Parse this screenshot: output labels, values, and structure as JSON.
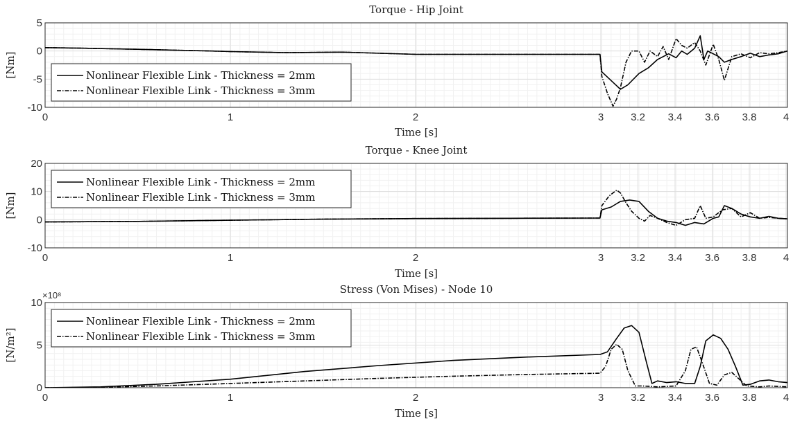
{
  "chart_data": [
    {
      "type": "line",
      "title": "Torque - Hip Joint",
      "xlabel": "Time [s]",
      "ylabel": "[Nm]",
      "xlim": [
        0,
        4
      ],
      "ylim": [
        -10,
        5
      ],
      "x_major_ticks": [
        "0",
        "1",
        "2",
        "3",
        "3.2",
        "3.4",
        "3.6",
        "3.8",
        "4"
      ],
      "y_ticks": [
        "5",
        "0",
        "-5",
        "-10"
      ],
      "grid": true,
      "legend_position": "bottom-left",
      "series": [
        {
          "name": "Nonlinear Flexible Link - Thickness = 2mm",
          "style": "solid",
          "x": [
            0,
            0.2,
            0.5,
            0.9,
            1.0,
            1.3,
            1.6,
            2.0,
            2.5,
            2.99,
            3.0,
            3.1,
            3.14,
            3.2,
            3.25,
            3.3,
            3.33,
            3.36,
            3.4,
            3.43,
            3.46,
            3.5,
            3.53,
            3.55,
            3.57,
            3.6,
            3.63,
            3.66,
            3.7,
            3.75,
            3.8,
            3.85,
            3.9,
            3.95,
            4.0
          ],
          "y": [
            0.6,
            0.5,
            0.3,
            0.0,
            -0.1,
            -0.3,
            -0.2,
            -0.6,
            -0.6,
            -0.6,
            -3.7,
            -6.8,
            -6.0,
            -4.0,
            -3.0,
            -1.5,
            -1.0,
            -0.5,
            -1.2,
            0.0,
            -0.6,
            0.5,
            2.7,
            -1.5,
            0.0,
            -0.5,
            -1.0,
            -2.0,
            -1.5,
            -1.0,
            -0.4,
            -1.0,
            -0.7,
            -0.5,
            0.0
          ]
        },
        {
          "name": "Nonlinear Flexible Link - Thickness = 3mm",
          "style": "dash-dot",
          "x": [
            0,
            0.2,
            0.5,
            0.9,
            1.0,
            1.3,
            1.6,
            2.0,
            2.5,
            2.99,
            3.0,
            3.03,
            3.06,
            3.08,
            3.1,
            3.13,
            3.16,
            3.2,
            3.23,
            3.26,
            3.3,
            3.33,
            3.36,
            3.4,
            3.43,
            3.46,
            3.5,
            3.53,
            3.56,
            3.6,
            3.63,
            3.66,
            3.7,
            3.75,
            3.8,
            3.85,
            3.9,
            3.95,
            4.0
          ],
          "y": [
            0.6,
            0.5,
            0.3,
            0.0,
            -0.1,
            -0.3,
            -0.2,
            -0.6,
            -0.6,
            -0.6,
            -4.5,
            -7.5,
            -9.8,
            -8.5,
            -6.5,
            -2.0,
            0.0,
            0.0,
            -2.0,
            0.0,
            -1.0,
            0.8,
            -1.5,
            2.2,
            1.0,
            0.5,
            1.5,
            0.0,
            -2.5,
            1.2,
            -1.5,
            -5.2,
            -1.0,
            -0.5,
            -1.2,
            -0.3,
            -0.5,
            -0.3,
            0.0
          ]
        }
      ]
    },
    {
      "type": "line",
      "title": "Torque - Knee Joint",
      "xlabel": "Time [s]",
      "ylabel": "[Nm]",
      "xlim": [
        0,
        4
      ],
      "ylim": [
        -10,
        20
      ],
      "x_major_ticks": [
        "0",
        "1",
        "2",
        "3",
        "3.2",
        "3.4",
        "3.6",
        "3.8",
        "4"
      ],
      "y_ticks": [
        "20",
        "10",
        "0",
        "-10"
      ],
      "grid": true,
      "legend_position": "top-left",
      "series": [
        {
          "name": "Nonlinear Flexible Link - Thickness = 2mm",
          "style": "solid",
          "x": [
            0,
            0.5,
            1.0,
            1.5,
            2.0,
            2.5,
            2.99,
            3.0,
            3.05,
            3.1,
            3.15,
            3.2,
            3.25,
            3.3,
            3.35,
            3.4,
            3.45,
            3.5,
            3.55,
            3.6,
            3.63,
            3.66,
            3.7,
            3.75,
            3.8,
            3.85,
            3.9,
            3.95,
            4.0
          ],
          "y": [
            -0.8,
            -0.6,
            -0.2,
            0.2,
            0.4,
            0.5,
            0.6,
            3.5,
            4.5,
            6.5,
            7.0,
            6.5,
            3.0,
            0.5,
            -0.5,
            -1.0,
            -2.0,
            -1.0,
            -1.5,
            0.5,
            1.0,
            5.0,
            4.0,
            2.0,
            1.0,
            0.5,
            1.2,
            0.5,
            0.3
          ]
        },
        {
          "name": "Nonlinear Flexible Link - Thickness = 3mm",
          "style": "dash-dot",
          "x": [
            0,
            0.5,
            1.0,
            1.5,
            2.0,
            2.5,
            2.99,
            3.0,
            3.04,
            3.08,
            3.1,
            3.13,
            3.16,
            3.2,
            3.23,
            3.26,
            3.3,
            3.35,
            3.4,
            3.45,
            3.5,
            3.53,
            3.56,
            3.6,
            3.65,
            3.7,
            3.75,
            3.8,
            3.85,
            3.9,
            3.95,
            4.0
          ],
          "y": [
            -0.8,
            -0.6,
            -0.2,
            0.2,
            0.4,
            0.5,
            0.6,
            5.0,
            8.5,
            10.5,
            9.5,
            6.0,
            3.0,
            0.5,
            -0.5,
            1.5,
            0.5,
            -1.0,
            -2.0,
            0.0,
            0.5,
            5.0,
            0.5,
            1.0,
            3.5,
            4.0,
            1.0,
            2.5,
            0.5,
            0.8,
            0.5,
            0.3
          ]
        }
      ]
    },
    {
      "type": "line",
      "title": "Stress (Von Mises) - Node 10",
      "xlabel": "Time [s]",
      "ylabel": "[N/m²]",
      "y_exponent": "×10⁸",
      "xlim": [
        0,
        4
      ],
      "ylim": [
        0,
        10
      ],
      "x_major_ticks": [
        "0",
        "1",
        "2",
        "3",
        "3.2",
        "3.4",
        "3.6",
        "3.8",
        "4"
      ],
      "y_ticks": [
        "10",
        "5",
        "0"
      ],
      "grid": true,
      "legend_position": "top-left",
      "series": [
        {
          "name": "Nonlinear Flexible Link - Thickness = 2mm",
          "style": "solid",
          "x": [
            0,
            0.3,
            0.6,
            1.0,
            1.4,
            1.8,
            2.2,
            2.6,
            2.99,
            3.03,
            3.08,
            3.12,
            3.16,
            3.2,
            3.24,
            3.27,
            3.3,
            3.35,
            3.4,
            3.45,
            3.5,
            3.53,
            3.56,
            3.6,
            3.64,
            3.68,
            3.72,
            3.76,
            3.8,
            3.85,
            3.9,
            3.95,
            4.0
          ],
          "y": [
            0,
            0.1,
            0.4,
            1.0,
            1.9,
            2.6,
            3.2,
            3.6,
            3.9,
            4.2,
            5.8,
            7.0,
            7.3,
            6.5,
            3.0,
            0.5,
            0.8,
            0.6,
            0.7,
            0.5,
            0.5,
            2.5,
            5.5,
            6.2,
            5.8,
            4.5,
            2.5,
            0.3,
            0.4,
            0.8,
            0.9,
            0.7,
            0.6
          ]
        },
        {
          "name": "Nonlinear Flexible Link - Thickness = 3mm",
          "style": "dash-dot",
          "x": [
            0,
            0.3,
            0.6,
            1.0,
            1.4,
            1.8,
            2.2,
            2.6,
            2.99,
            3.02,
            3.05,
            3.08,
            3.11,
            3.14,
            3.18,
            3.22,
            3.3,
            3.4,
            3.45,
            3.48,
            3.51,
            3.54,
            3.58,
            3.62,
            3.66,
            3.7,
            3.74,
            3.78,
            3.85,
            3.9,
            4.0
          ],
          "y": [
            0,
            0.05,
            0.2,
            0.5,
            0.8,
            1.1,
            1.35,
            1.55,
            1.7,
            2.5,
            4.5,
            5.1,
            4.5,
            2.0,
            0.2,
            0.2,
            0.1,
            0.2,
            2.0,
            4.5,
            4.8,
            3.0,
            0.5,
            0.3,
            1.5,
            1.8,
            1.0,
            0.2,
            0.1,
            0.2,
            0.1
          ]
        }
      ]
    }
  ]
}
